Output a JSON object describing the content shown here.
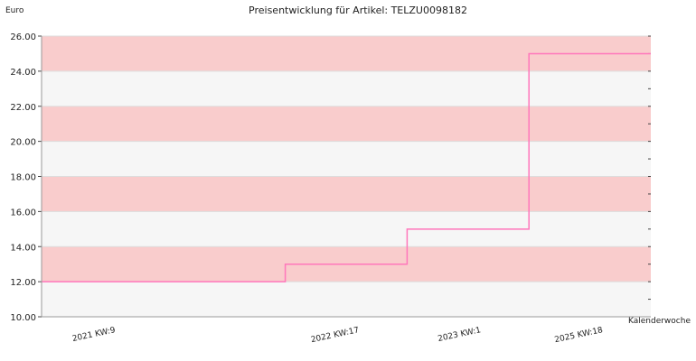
{
  "chart_data": {
    "type": "line",
    "step": true,
    "title": "Preisentwicklung für Artikel: TELZU0098182",
    "ylabel": "Euro",
    "xlabel": "Kalenderwoche",
    "ylim": [
      10,
      26
    ],
    "y_ticks": [
      "10.00",
      "12.00",
      "14.00",
      "16.00",
      "18.00",
      "20.00",
      "22.00",
      "24.00",
      "26.00"
    ],
    "x_tick_labels": [
      "2021 KW:9",
      "2022 KW:17",
      "2023 KW:1",
      "2025 KW:18"
    ],
    "grid": true,
    "series": [
      {
        "x": [
          "2021 KW:9",
          "2022 KW:17",
          "2023 KW:1",
          "2025 KW:18"
        ],
        "values": [
          12,
          13,
          15,
          25
        ]
      }
    ],
    "colors": {
      "line": "#ff77bb",
      "band_dark": "#f9cccc",
      "band_light": "#f6f6f6"
    }
  }
}
